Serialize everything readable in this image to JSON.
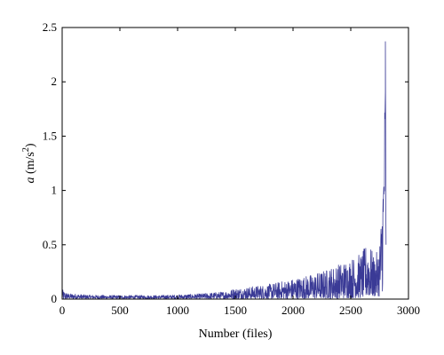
{
  "chart_data": {
    "type": "line",
    "xlabel": "Number (files)",
    "ylabel": {
      "symbol": "a",
      "unit": " (m/s",
      "exponent": "2",
      "close": ")"
    },
    "xlim": [
      0,
      3000
    ],
    "ylim": [
      0,
      2.5
    ],
    "xticks": [
      "0",
      "500",
      "1000",
      "1500",
      "2000",
      "2500",
      "3000"
    ],
    "yticks": [
      "0",
      "0.5",
      "1",
      "1.5",
      "2",
      "2.5"
    ],
    "grid": false,
    "legend": "none",
    "series_color": "#3a3a96",
    "envelope": {
      "x": [
        0,
        20,
        60,
        100,
        200,
        400,
        600,
        800,
        1000,
        1200,
        1400,
        1500,
        1600,
        1800,
        2000,
        2200,
        2300,
        2400,
        2500,
        2600,
        2650,
        2700,
        2740,
        2760,
        2780,
        2790,
        2800
      ],
      "upper": [
        0.09,
        0.07,
        0.05,
        0.05,
        0.04,
        0.035,
        0.035,
        0.035,
        0.04,
        0.05,
        0.07,
        0.1,
        0.11,
        0.14,
        0.19,
        0.24,
        0.28,
        0.33,
        0.38,
        0.43,
        0.55,
        0.4,
        0.45,
        0.7,
        1.3,
        1.5,
        2.37
      ],
      "lower": [
        0.0,
        0.0,
        0.005,
        0.005,
        0.005,
        0.005,
        0.005,
        0.005,
        0.005,
        0.005,
        0.005,
        0.005,
        0.005,
        0.005,
        0.005,
        0.005,
        0.005,
        0.005,
        0.01,
        0.01,
        0.02,
        0.02,
        0.03,
        0.0,
        0.1,
        0.8,
        0.8
      ]
    }
  }
}
